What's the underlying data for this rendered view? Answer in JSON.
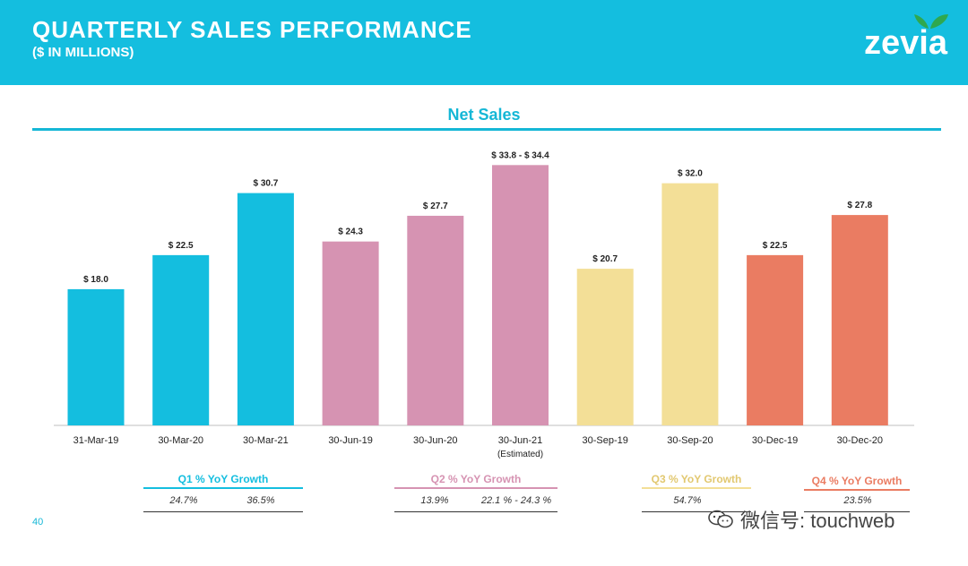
{
  "header": {
    "title": "QUARTERLY SALES PERFORMANCE",
    "subtitle": "($ IN MILLIONS)",
    "logo_text": "zevia"
  },
  "colors": {
    "header_bg": "#14bedf",
    "q1": "#14bedf",
    "q2": "#d693b2",
    "q3": "#f3df97",
    "q4": "#ea7c62"
  },
  "chart_data": {
    "type": "bar",
    "title": "Net Sales",
    "xlabel": "",
    "ylabel": "",
    "ylim": [
      0,
      40
    ],
    "categories": [
      "31-Mar-19",
      "30-Mar-20",
      "30-Mar-21",
      "30-Jun-19",
      "30-Jun-20",
      "30-Jun-21",
      "30-Sep-19",
      "30-Sep-20",
      "30-Dec-19",
      "30-Dec-20"
    ],
    "category_notes": [
      "",
      "",
      "",
      "",
      "",
      "(Estimated)",
      "",
      "",
      "",
      ""
    ],
    "values": [
      18.0,
      22.5,
      30.7,
      24.3,
      27.7,
      34.4,
      20.7,
      32.0,
      22.5,
      27.8
    ],
    "data_labels": [
      "$ 18.0",
      "$ 22.5",
      "$ 30.7",
      "$ 24.3",
      "$ 27.7",
      "$ 33.8 - $ 34.4",
      "$ 20.7",
      "$ 32.0",
      "$ 22.5",
      "$ 27.8"
    ],
    "quarters": [
      "Q1",
      "Q1",
      "Q1",
      "Q2",
      "Q2",
      "Q2",
      "Q3",
      "Q3",
      "Q4",
      "Q4"
    ]
  },
  "growth": {
    "q1": {
      "title": "Q1 % YoY Growth",
      "values": [
        "24.7%",
        "36.5%"
      ]
    },
    "q2": {
      "title": "Q2 % YoY Growth",
      "values": [
        "13.9%",
        "22.1 % - 24.3 %"
      ]
    },
    "q3": {
      "title": "Q3 % YoY Growth",
      "values": [
        "54.7%"
      ]
    },
    "q4": {
      "title": "Q4 % YoY Growth",
      "values": [
        "23.5%"
      ]
    }
  },
  "footer": {
    "page_number": "40",
    "watermark": "微信号: touchweb"
  }
}
